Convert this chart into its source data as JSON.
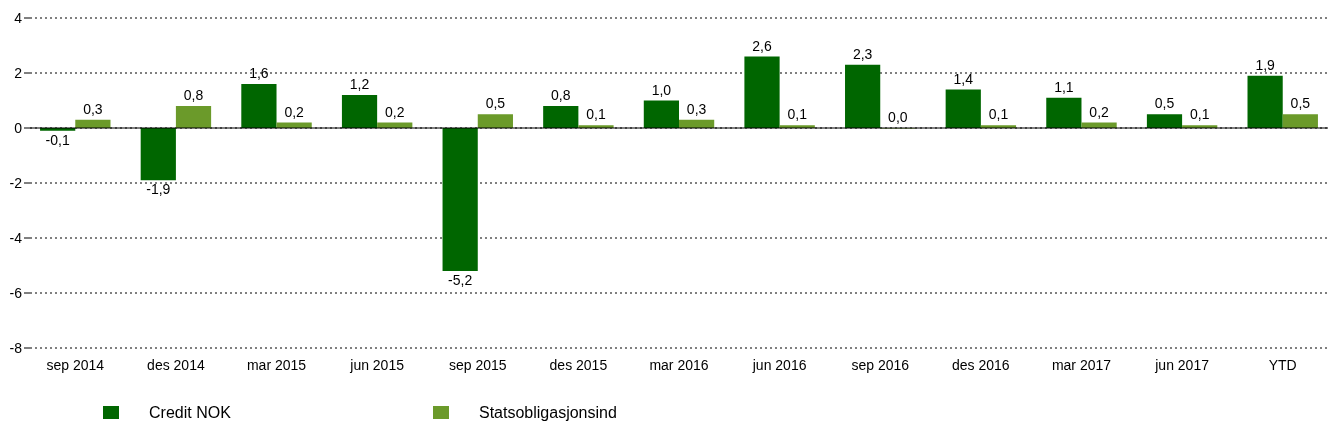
{
  "chart_data": {
    "type": "bar",
    "categories": [
      "sep 2014",
      "des 2014",
      "mar 2015",
      "jun 2015",
      "sep 2015",
      "des 2015",
      "mar 2016",
      "jun 2016",
      "sep 2016",
      "des 2016",
      "mar 2017",
      "jun 2017",
      "YTD"
    ],
    "series": [
      {
        "name": "Credit NOK",
        "color": "#006600",
        "values": [
          -0.1,
          -1.9,
          1.6,
          1.2,
          -5.2,
          0.8,
          1.0,
          2.6,
          2.3,
          1.4,
          1.1,
          0.5,
          1.9
        ],
        "value_labels": [
          "-0,1",
          "-1,9",
          "1,6",
          "1,2",
          "-5,2",
          "0,8",
          "1,0",
          "2,6",
          "2,3",
          "1,4",
          "1,1",
          "0,5",
          "1,9"
        ]
      },
      {
        "name": "Statsobligasjonsind",
        "color": "#6b9a2a",
        "values": [
          0.3,
          0.8,
          0.2,
          0.2,
          0.5,
          0.1,
          0.3,
          0.1,
          0.0,
          0.1,
          0.2,
          0.1,
          0.5
        ],
        "value_labels": [
          "0,3",
          "0,8",
          "0,2",
          "0,2",
          "0,5",
          "0,1",
          "0,3",
          "0,1",
          "0,0",
          "0,1",
          "0,2",
          "0,1",
          "0,5"
        ]
      }
    ],
    "ylim": [
      -8,
      4
    ],
    "yticks": [
      -8,
      -6,
      -4,
      -2,
      0,
      2,
      4
    ],
    "grid": "y",
    "legend": "bottom"
  }
}
